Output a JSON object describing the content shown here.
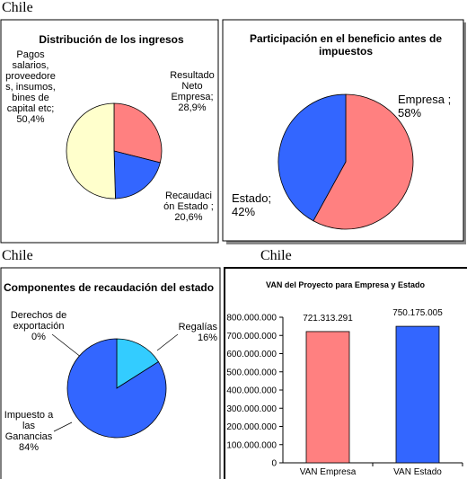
{
  "captions": [
    "Chile",
    "Chile",
    "Chile"
  ],
  "chart_data": [
    {
      "type": "pie",
      "title": "Distribución de los ingresos",
      "categories": [
        "Resultado Neto Empresa;",
        "Recaudación Estado ;",
        "Pagos salarios, proveedores, insumos, bines de capital etc;"
      ],
      "values": [
        28.9,
        20.6,
        50.4
      ],
      "value_labels": [
        "28,9%",
        "20,6%",
        "50,4%"
      ],
      "colors": [
        "#ff8080",
        "#3366ff",
        "#ffffcc"
      ]
    },
    {
      "type": "pie",
      "title": "Participación en el beneficio antes de impuestos",
      "categories": [
        "Empresa ;",
        "Estado;"
      ],
      "values": [
        58,
        42
      ],
      "value_labels": [
        "58%",
        "42%"
      ],
      "colors": [
        "#ff8080",
        "#3366ff"
      ]
    },
    {
      "type": "pie",
      "title": "Componentes de recaudación del estado",
      "categories": [
        "Derechos de exportación",
        "Regalías",
        "Impuesto a las Ganancias"
      ],
      "values": [
        0,
        16,
        84
      ],
      "value_labels": [
        "0%",
        "16%",
        "84%"
      ],
      "colors": [
        "#ffffcc",
        "#33ccff",
        "#3366ff"
      ]
    },
    {
      "type": "bar",
      "title": "VAN del Proyecto para Empresa y Estado",
      "categories": [
        "VAN Empresa",
        "VAN Estado"
      ],
      "values": [
        721313291,
        750175005
      ],
      "value_labels": [
        "721.313.291",
        "750.175.005"
      ],
      "colors": [
        "#ff8080",
        "#3366ff"
      ],
      "ylim": [
        0,
        800000000
      ],
      "yticks": [
        {
          "value": 0,
          "label": "0"
        },
        {
          "value": 100000000,
          "label": "100.000.000"
        },
        {
          "value": 200000000,
          "label": "200.000.000"
        },
        {
          "value": 300000000,
          "label": "300.000.000"
        },
        {
          "value": 400000000,
          "label": "400.000.000"
        },
        {
          "value": 500000000,
          "label": "500.000.000"
        },
        {
          "value": 600000000,
          "label": "600.000.000"
        },
        {
          "value": 700000000,
          "label": "700.000.000"
        },
        {
          "value": 800000000,
          "label": "800.000.000"
        }
      ]
    }
  ]
}
